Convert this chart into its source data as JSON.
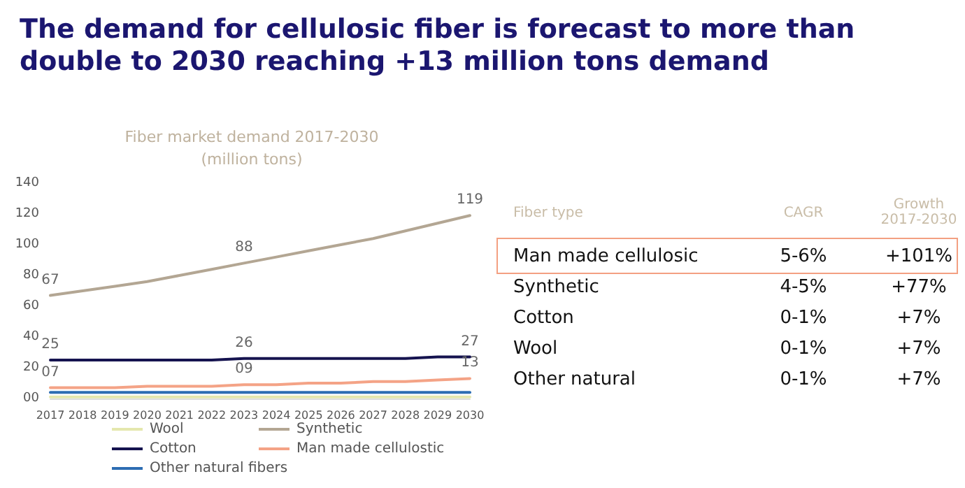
{
  "chart_data": [
    {
      "type": "line",
      "title": "The demand for cellulosic fiber is forecast to more than double to 2030 reaching +13 million tons demand",
      "subtitle": "Fiber market demand 2017-2030\n(million tons)",
      "categories": [
        "2017",
        "2018",
        "2019",
        "2020",
        "2021",
        "2022",
        "2023",
        "2024",
        "2025",
        "2026",
        "2027",
        "2028",
        "2029",
        "2030"
      ],
      "series": [
        {
          "name": "Wool",
          "color": "#e4e7ad",
          "values": [
            1,
            1,
            1,
            1,
            1,
            1,
            1,
            1,
            1,
            1,
            1,
            1,
            1,
            1
          ]
        },
        {
          "name": "Synthetic",
          "color": "#b3a693",
          "values": [
            67,
            70,
            73,
            76,
            80,
            84,
            88,
            92,
            96,
            100,
            104,
            109,
            114,
            119
          ],
          "value_labels": [
            "67",
            null,
            null,
            null,
            null,
            null,
            "88",
            null,
            null,
            null,
            null,
            null,
            null,
            "119"
          ]
        },
        {
          "name": "Cotton",
          "color": "#15134f",
          "values": [
            25,
            25,
            25,
            25,
            25,
            25,
            26,
            26,
            26,
            26,
            26,
            26,
            27,
            27
          ],
          "value_labels": [
            "25",
            null,
            null,
            null,
            null,
            null,
            "26",
            null,
            null,
            null,
            null,
            null,
            null,
            "27"
          ]
        },
        {
          "name": "Man made cellulostic",
          "color": "#f4a386",
          "values": [
            7,
            7,
            7,
            8,
            8,
            8,
            9,
            9,
            10,
            10,
            11,
            11,
            12,
            13
          ],
          "value_labels": [
            "07",
            null,
            null,
            null,
            null,
            null,
            "09",
            null,
            null,
            null,
            null,
            null,
            null,
            "13"
          ]
        },
        {
          "name": "Other natural fibers",
          "color": "#2d6db3",
          "values": [
            4,
            4,
            4,
            4,
            4,
            4,
            4,
            4,
            4,
            4,
            4,
            4,
            4,
            4
          ]
        }
      ],
      "ylim": [
        0,
        140
      ],
      "yticks": [
        {
          "value": 0,
          "label": "00"
        },
        20,
        40,
        60,
        80,
        100,
        120,
        140
      ],
      "grid": false,
      "legend": "bottom",
      "marker": "none",
      "line_style": "solid"
    },
    {
      "type": "other",
      "annotations": [
        "Fiber type",
        "CAGR",
        "Growth\n2017-2030",
        "Man made cellulosic",
        "5-6%",
        "+101%",
        "Synthetic",
        "4-5%",
        "+77%",
        "Cotton",
        "0-1%",
        "+7%",
        "Wool",
        "0-1%",
        "+7%",
        "Other natural",
        "0-1%",
        "+7%"
      ]
    }
  ]
}
